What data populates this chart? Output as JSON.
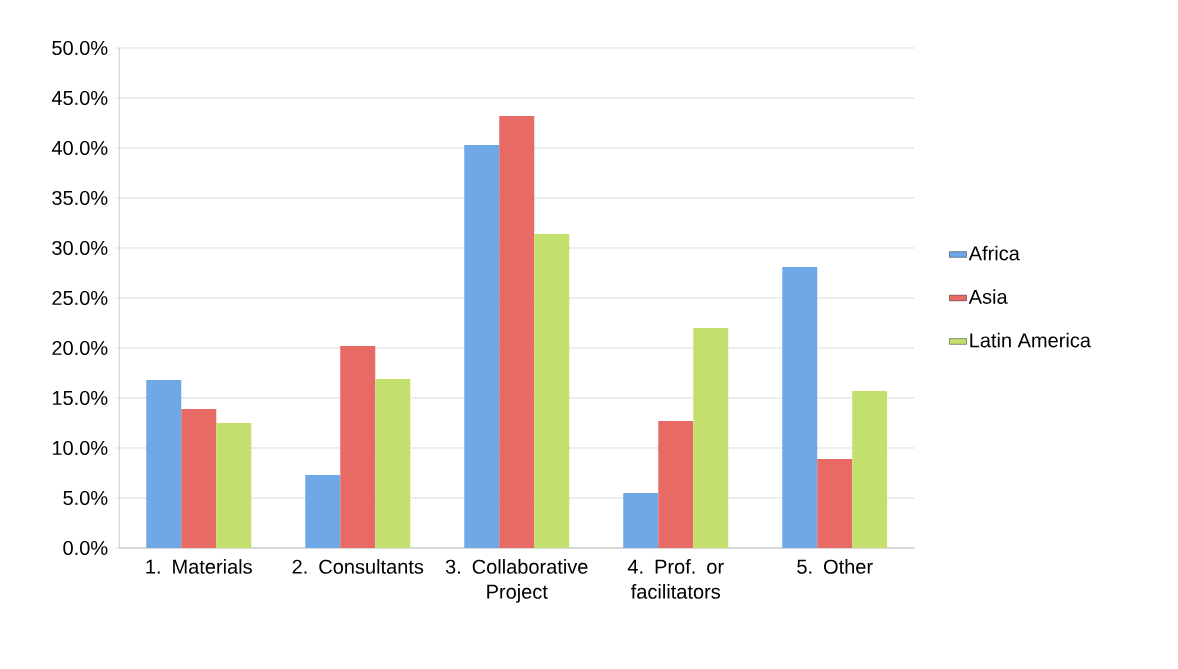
{
  "chart_data": {
    "type": "bar",
    "categories": [
      "1. Materials",
      "2. Consultants",
      "3. Collaborative Project",
      "4. Prof. or facilitators",
      "5. Other"
    ],
    "series": [
      {
        "name": "Africa",
        "color": "#6fa8e6",
        "values": [
          16.8,
          7.3,
          40.3,
          5.5,
          28.1
        ]
      },
      {
        "name": "Asia",
        "color": "#e86a64",
        "values": [
          13.9,
          20.2,
          43.2,
          12.7,
          8.9
        ]
      },
      {
        "name": "Latin America",
        "color": "#c3df6d",
        "values": [
          12.5,
          16.9,
          31.4,
          22.0,
          15.7
        ]
      }
    ],
    "ylim": [
      0,
      50
    ],
    "yticks": [
      {
        "value": 0,
        "label": "0.0%"
      },
      {
        "value": 5,
        "label": "5.0%"
      },
      {
        "value": 10,
        "label": "10.0%"
      },
      {
        "value": 15,
        "label": "15.0%"
      },
      {
        "value": 20,
        "label": "20.0%"
      },
      {
        "value": 25,
        "label": "25.0%"
      },
      {
        "value": 30,
        "label": "30.0%"
      },
      {
        "value": 35,
        "label": "35.0%"
      },
      {
        "value": 40,
        "label": "40.0%"
      },
      {
        "value": 45,
        "label": "45.0%"
      },
      {
        "value": 50,
        "label": "50.0%"
      }
    ],
    "grid": "y",
    "legend": "right"
  }
}
